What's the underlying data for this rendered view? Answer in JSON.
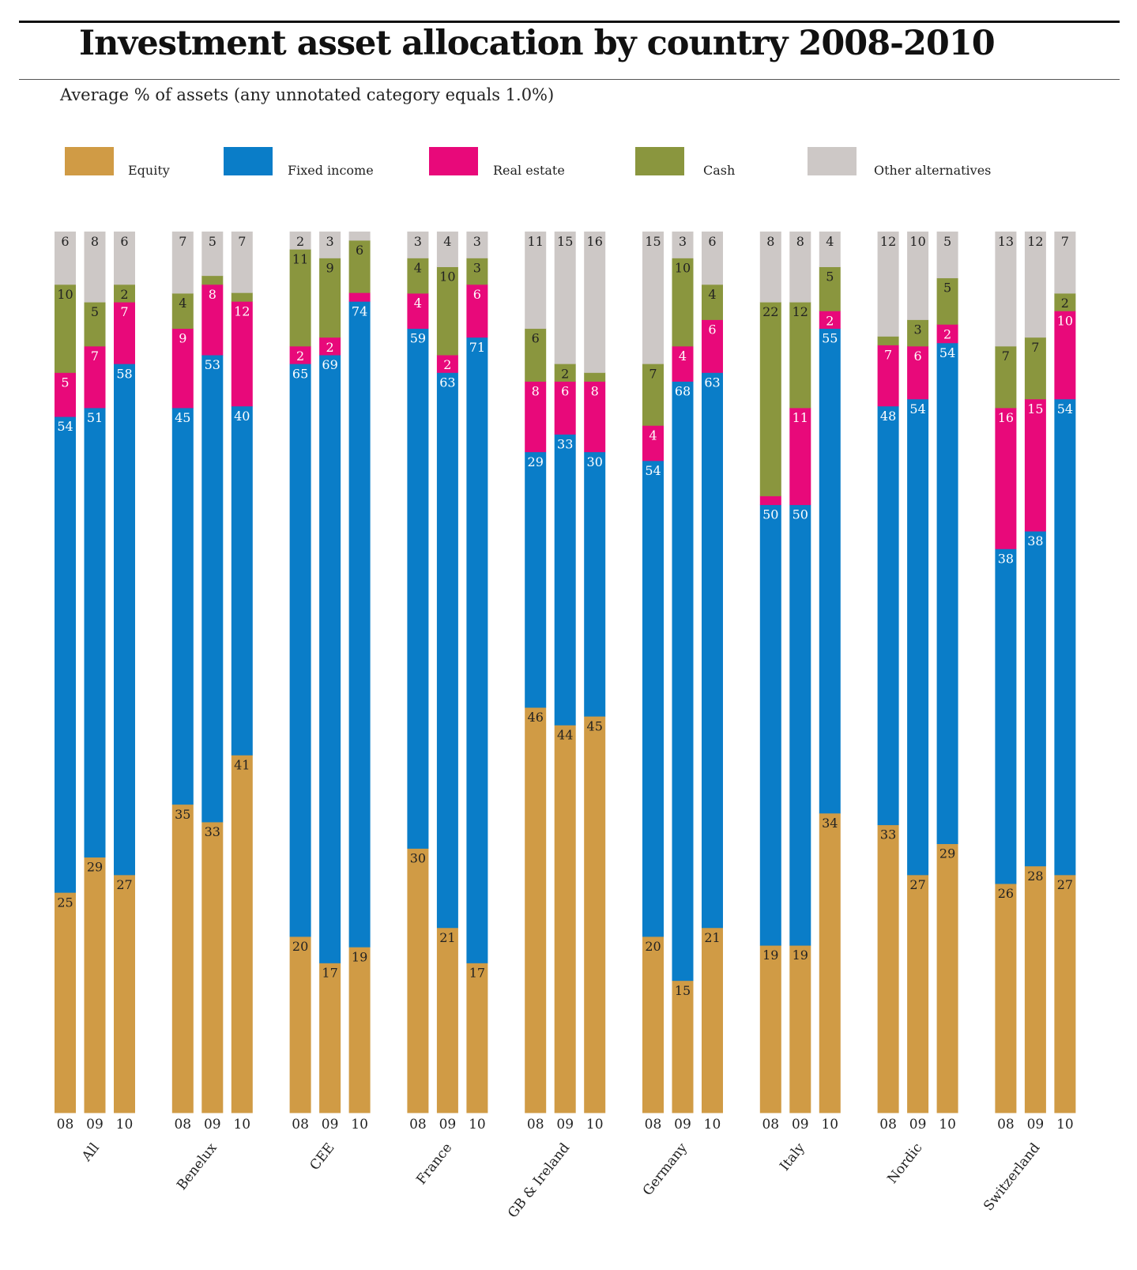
{
  "title": "Investment asset allocation by country 2008-2010",
  "subtitle": "Average % of assets (any unnotated category equals 1.0%)",
  "colors": {
    "Equity": "#d09b45",
    "Fixed income": "#0a7dc8",
    "Real estate": "#e8097a",
    "Cash": "#8a963e",
    "Other alternatives": "#cdc8c6"
  },
  "legend": [
    "Equity",
    "Fixed income",
    "Real estate",
    "Cash",
    "Other alternatives"
  ],
  "chart_data": {
    "type": "bar",
    "stacked": true,
    "normalized_to": 100,
    "unit": "% of assets",
    "default_unlabeled_value": 1.0,
    "series_order": [
      "Equity",
      "Fixed income",
      "Real estate",
      "Cash",
      "Other alternatives"
    ],
    "groups": [
      {
        "country": "All",
        "bars": [
          {
            "year": "08",
            "values": [
              25,
              54,
              5,
              10,
              6
            ]
          },
          {
            "year": "09",
            "values": [
              29,
              51,
              7,
              5,
              8
            ]
          },
          {
            "year": "10",
            "values": [
              27,
              58,
              7,
              2,
              6
            ]
          }
        ]
      },
      {
        "country": "Benelux",
        "bars": [
          {
            "year": "08",
            "values": [
              35,
              45,
              9,
              4,
              7
            ]
          },
          {
            "year": "09",
            "values": [
              33,
              53,
              8,
              1,
              5
            ]
          },
          {
            "year": "10",
            "values": [
              41,
              40,
              12,
              null,
              7
            ]
          }
        ]
      },
      {
        "country": "CEE",
        "bars": [
          {
            "year": "08",
            "values": [
              20,
              65,
              2,
              11,
              2
            ]
          },
          {
            "year": "09",
            "values": [
              17,
              69,
              2,
              9,
              3
            ]
          },
          {
            "year": "10",
            "values": [
              19,
              74,
              null,
              6,
              1
            ]
          }
        ]
      },
      {
        "country": "France",
        "bars": [
          {
            "year": "08",
            "values": [
              30,
              59,
              4,
              4,
              3
            ]
          },
          {
            "year": "09",
            "values": [
              21,
              63,
              2,
              10,
              4
            ]
          },
          {
            "year": "10",
            "values": [
              17,
              71,
              6,
              3,
              3
            ]
          }
        ]
      },
      {
        "country": "GB & Ireland",
        "bars": [
          {
            "year": "08",
            "values": [
              46,
              29,
              8,
              6,
              11
            ]
          },
          {
            "year": "09",
            "values": [
              44,
              33,
              6,
              2,
              15
            ]
          },
          {
            "year": "10",
            "values": [
              45,
              30,
              8,
              1,
              16
            ]
          }
        ]
      },
      {
        "country": "Germany",
        "bars": [
          {
            "year": "08",
            "values": [
              20,
              54,
              4,
              7,
              15
            ]
          },
          {
            "year": "09",
            "values": [
              15,
              68,
              4,
              10,
              3
            ]
          },
          {
            "year": "10",
            "values": [
              21,
              63,
              6,
              4,
              6
            ]
          }
        ]
      },
      {
        "country": "Italy",
        "bars": [
          {
            "year": "08",
            "values": [
              19,
              50,
              1,
              22,
              8
            ]
          },
          {
            "year": "09",
            "values": [
              19,
              50,
              11,
              12,
              8
            ]
          },
          {
            "year": "10",
            "values": [
              34,
              55,
              2,
              5,
              4
            ]
          }
        ]
      },
      {
        "country": "Nordic",
        "bars": [
          {
            "year": "08",
            "values": [
              33,
              48,
              7,
              null,
              12
            ]
          },
          {
            "year": "09",
            "values": [
              27,
              54,
              6,
              3,
              10
            ]
          },
          {
            "year": "10",
            "values": [
              29,
              54,
              2,
              5,
              5
            ]
          }
        ]
      },
      {
        "country": "Switzerland",
        "bars": [
          {
            "year": "08",
            "values": [
              26,
              38,
              16,
              7,
              13
            ]
          },
          {
            "year": "09",
            "values": [
              28,
              38,
              15,
              7,
              12
            ]
          },
          {
            "year": "10",
            "values": [
              27,
              54,
              10,
              2,
              7
            ]
          }
        ]
      }
    ]
  }
}
